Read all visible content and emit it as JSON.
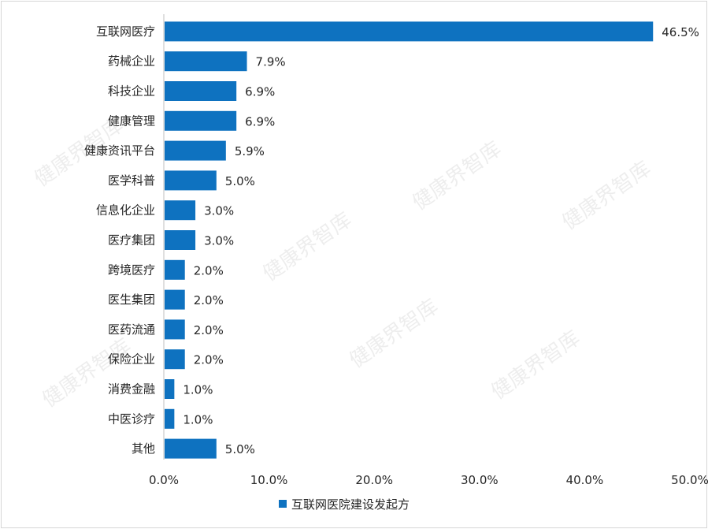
{
  "chart_data": {
    "type": "bar",
    "orientation": "horizontal",
    "categories": [
      "互联网医疗",
      "药械企业",
      "科技企业",
      "健康管理",
      "健康资讯平台",
      "医学科普",
      "信息化企业",
      "医疗集团",
      "跨境医疗",
      "医生集团",
      "医药流通",
      "保险企业",
      "消费金融",
      "中医诊疗",
      "其他"
    ],
    "series": [
      {
        "name": "互联网医院建设发起方",
        "values": [
          46.5,
          7.9,
          6.9,
          6.9,
          5.9,
          5.0,
          3.0,
          3.0,
          2.0,
          2.0,
          2.0,
          2.0,
          1.0,
          1.0,
          5.0
        ],
        "value_labels": [
          "46.5%",
          "7.9%",
          "6.9%",
          "6.9%",
          "5.9%",
          "5.0%",
          "3.0%",
          "3.0%",
          "2.0%",
          "2.0%",
          "2.0%",
          "2.0%",
          "1.0%",
          "1.0%",
          "5.0%"
        ]
      }
    ],
    "xlim": [
      0,
      50
    ],
    "x_ticks": [
      0,
      10,
      20,
      30,
      40,
      50
    ],
    "x_tick_labels": [
      "0.0%",
      "10.0%",
      "20.0%",
      "30.0%",
      "40.0%",
      "50.0%"
    ],
    "xlabel": "",
    "ylabel": "",
    "title": "",
    "grid": false,
    "legend_position": "bottom",
    "bar_color": "#0e72c0",
    "watermark": "健康界智库"
  }
}
